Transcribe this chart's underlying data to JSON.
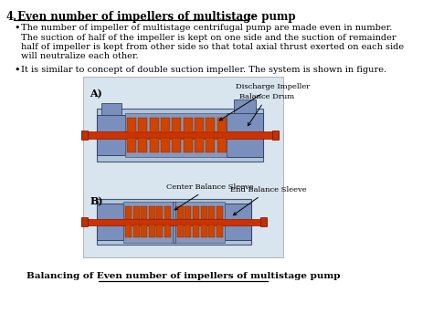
{
  "title_num": "4.",
  "title_text": " Even number of impellers of multistage pump",
  "title_suffix": ":-",
  "bullet1_lines": [
    "The number of impeller of multistage centrifugal pump are made even in number.",
    "The suction of half of the impeller is kept on one side and the suction of remainder",
    "half of impeller is kept from other side so that total axial thrust exerted on each side",
    "will neutralize each other."
  ],
  "bullet2": "It is similar to concept of double suction impeller. The system is shown in figure.",
  "label_A": "A)",
  "label_B": "B)",
  "label_discharge": "Discharge Impeller",
  "label_balance_drum": "Balance Drum",
  "label_center": "Center Balance Sleeve",
  "label_end": "End Balance Sleeve",
  "caption": "Balancing of Even number of impellers of multistage pump",
  "bg_color": "#ffffff",
  "text_color": "#000000",
  "pump_body_color": "#7a8fbb",
  "pump_body_light": "#b0c4d8",
  "shaft_color": "#cc3300",
  "impeller_color": "#cc4400",
  "box_bg": "#d8e4ee"
}
